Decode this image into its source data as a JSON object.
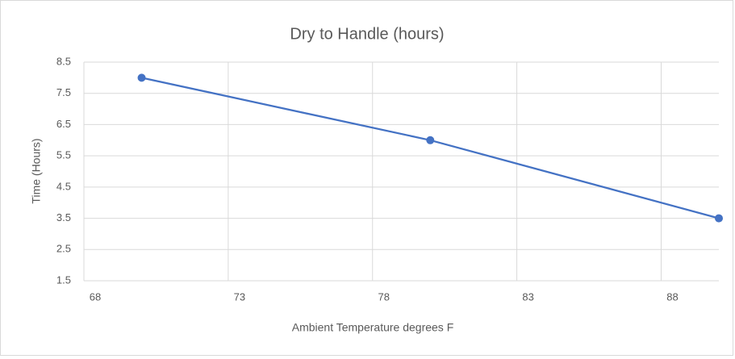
{
  "chart_data": {
    "type": "line",
    "title": "Dry to Handle (hours)",
    "x_label": "Ambient Temperature degrees F",
    "y_label": "Time (Hours)",
    "x": [
      70,
      80,
      90
    ],
    "values": [
      8,
      6,
      3.5
    ],
    "color": "#4472c4",
    "markers": true,
    "xlim": [
      68,
      90
    ],
    "xticks": [
      68,
      73,
      78,
      83,
      88
    ],
    "ylim": [
      1.5,
      8.5
    ],
    "yticks": [
      1.5,
      2.5,
      3.5,
      4.5,
      5.5,
      6.5,
      7.5,
      8.5
    ],
    "grid": true
  }
}
